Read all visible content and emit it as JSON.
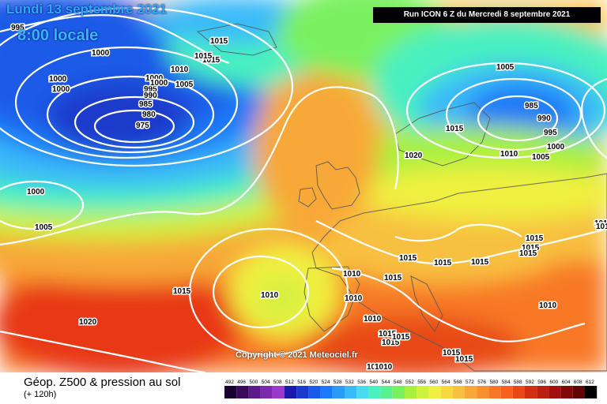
{
  "header": {
    "date": "Lundi 13 septembre 2021",
    "hour": "8:00 locale",
    "run": "Run ICON 6 Z du Mercredi 8 septembre 2021"
  },
  "copyright": "Copyright © 2021 Meteociel.fr",
  "footer": {
    "title": "Géop. Z500 & pression au sol",
    "subtitle": "(+ 120h)"
  },
  "color_scale": {
    "labels": [
      "492",
      "496",
      "500",
      "504",
      "508",
      "512",
      "516",
      "520",
      "524",
      "528",
      "532",
      "536",
      "540",
      "544",
      "548",
      "552",
      "556",
      "560",
      "564",
      "568",
      "572",
      "576",
      "580",
      "584",
      "588",
      "592",
      "596",
      "600",
      "604",
      "608",
      "612"
    ],
    "colors": [
      "#1a0030",
      "#3a0a5a",
      "#5a1a8a",
      "#7a2aaa",
      "#9a3acb",
      "#1a1aaa",
      "#1a3acb",
      "#1a5ae8",
      "#1a7af8",
      "#2a9af8",
      "#3abaf8",
      "#4adaf0",
      "#4af0c0",
      "#5af090",
      "#7af060",
      "#a8f040",
      "#d0f040",
      "#f0f040",
      "#f8d840",
      "#f8c040",
      "#f8a838",
      "#f89030",
      "#f87828",
      "#f86020",
      "#e84818",
      "#d03010",
      "#b82010",
      "#a01010",
      "#800808",
      "#600404",
      "#000000"
    ]
  },
  "pressure_labels": [
    {
      "text": "995"
    },
    {
      "text": "1000"
    },
    {
      "text": "1000"
    },
    {
      "text": "1000"
    },
    {
      "text": "1000"
    },
    {
      "text": "1015"
    },
    {
      "text": "1015"
    },
    {
      "text": "1015"
    },
    {
      "text": "1010"
    },
    {
      "text": "1000"
    },
    {
      "text": "995"
    },
    {
      "text": "990"
    },
    {
      "text": "985"
    },
    {
      "text": "980"
    },
    {
      "text": "975"
    },
    {
      "text": "1005"
    },
    {
      "text": "985"
    },
    {
      "text": "990"
    },
    {
      "text": "995"
    },
    {
      "text": "1000"
    },
    {
      "text": "1005"
    },
    {
      "text": "1010"
    },
    {
      "text": "1015"
    },
    {
      "text": "1020"
    },
    {
      "text": "1000"
    },
    {
      "text": "1005"
    },
    {
      "text": "1005"
    },
    {
      "text": "1015"
    },
    {
      "text": "1010"
    },
    {
      "text": "1010"
    },
    {
      "text": "1015"
    },
    {
      "text": "1015"
    },
    {
      "text": "1015"
    },
    {
      "text": "1015"
    },
    {
      "text": "1015"
    },
    {
      "text": "1015"
    },
    {
      "text": "1015"
    },
    {
      "text": "1010"
    },
    {
      "text": "1015"
    },
    {
      "text": "1015"
    },
    {
      "text": "1015"
    },
    {
      "text": "1010"
    },
    {
      "text": "1020"
    },
    {
      "text": "1015"
    },
    {
      "text": "1015"
    },
    {
      "text": "1015"
    },
    {
      "text": "1010"
    },
    {
      "text": "1010"
    },
    {
      "text": "1015"
    },
    {
      "text": "1010"
    }
  ]
}
